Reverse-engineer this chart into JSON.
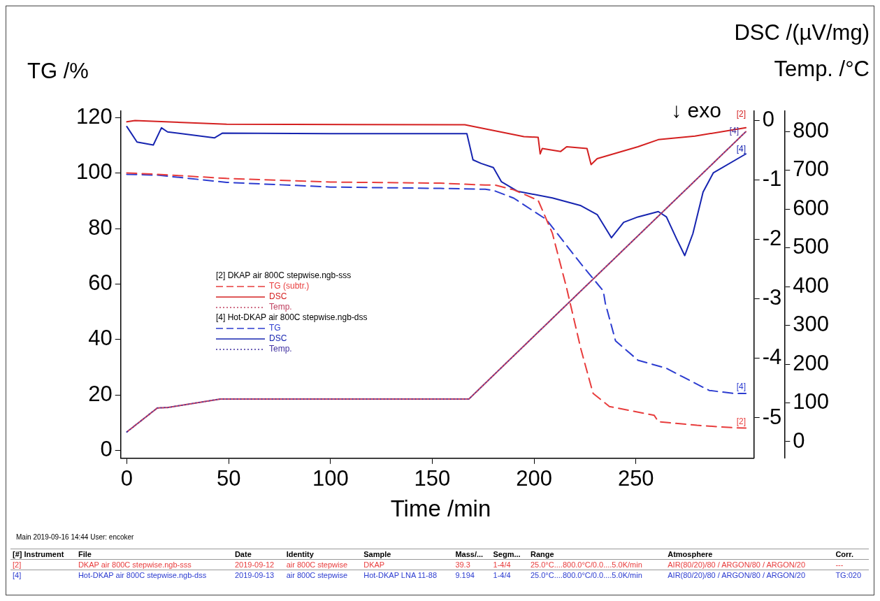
{
  "chart_data": {
    "type": "line",
    "xlabel": "Time /min",
    "ylabel": "TG /%",
    "y2label": "DSC /(µV/mg)",
    "y3label": "Temp. /°C",
    "xlim": [
      -3,
      308
    ],
    "xticks": [
      0,
      50,
      100,
      150,
      200,
      250
    ],
    "ylim": [
      -2.9,
      122.4
    ],
    "yticks": [
      0,
      20,
      40,
      60,
      80,
      100,
      120
    ],
    "y2lim": [
      -5.68,
      0.16
    ],
    "y2ticks": [
      -5,
      -4,
      -3,
      -2,
      -1,
      0
    ],
    "y3lim": [
      -43,
      853
    ],
    "y3ticks": [
      0,
      100,
      200,
      300,
      400,
      500,
      600,
      700,
      800
    ],
    "grid": false,
    "legend": "left",
    "marker": "none",
    "series": [
      {
        "name": "TG (subtr.)",
        "color": "#e83c3c",
        "line_style": "dashed",
        "x": [
          0,
          15,
          49,
          100,
          154,
          176,
          181,
          190,
          202,
          209,
          216,
          223,
          229,
          237,
          259,
          260,
          261,
          280,
          299,
          304
        ],
        "values": [
          100.1,
          99.6,
          98.1,
          96.8,
          96.4,
          95.7,
          95.7,
          94,
          90.2,
          78.3,
          58.5,
          36.5,
          20.5,
          15.8,
          12.6,
          11.5,
          10.3,
          9,
          8.1,
          8
        ]
      },
      {
        "name": "DSC",
        "color": "#d42020",
        "line_style": "solid",
        "axis": "y2",
        "x": [
          0,
          4,
          49,
          166,
          195,
          202,
          203,
          204,
          213,
          216,
          226,
          228,
          231,
          251,
          261,
          279,
          304
        ],
        "values": [
          -0.02,
          0,
          -0.06,
          -0.07,
          -0.27,
          -0.28,
          -0.56,
          -0.47,
          -0.52,
          -0.44,
          -0.47,
          -0.74,
          -0.64,
          -0.44,
          -0.32,
          -0.26,
          -0.12
        ]
      },
      {
        "name": "Temp.",
        "color": "#c04060",
        "line_style": "dotted",
        "axis": "y3",
        "x": [
          0,
          15,
          20,
          46,
          168,
          304
        ],
        "values": [
          25,
          87,
          88,
          110,
          110,
          800
        ]
      },
      {
        "name": "TG",
        "color": "#2c3cd0",
        "line_style": "dashed",
        "x": [
          0,
          15,
          49,
          100,
          154,
          176,
          180,
          190,
          206,
          223,
          234,
          235,
          240,
          251,
          265,
          273,
          286,
          298,
          304
        ],
        "values": [
          99.6,
          99.3,
          96.7,
          95,
          94.5,
          94.2,
          93.8,
          91,
          83.3,
          67.3,
          57.5,
          53,
          39.5,
          32.5,
          29.6,
          26.5,
          21.6,
          20.5,
          20.5
        ]
      },
      {
        "name": "DSC",
        "color": "#1624b0",
        "line_style": "solid",
        "axis": "y2",
        "x": [
          0,
          5,
          13,
          17,
          20,
          43,
          47,
          100,
          167,
          170,
          174,
          180,
          184,
          192,
          209,
          223,
          231,
          238,
          244,
          251,
          261,
          265,
          270,
          274,
          278,
          283,
          288,
          304
        ],
        "values": [
          -0.1,
          -0.36,
          -0.41,
          -0.12,
          -0.19,
          -0.29,
          -0.21,
          -0.22,
          -0.22,
          -0.66,
          -0.72,
          -0.79,
          -1.03,
          -1.19,
          -1.3,
          -1.43,
          -1.58,
          -1.97,
          -1.71,
          -1.62,
          -1.53,
          -1.62,
          -1.99,
          -2.27,
          -1.9,
          -1.2,
          -0.88,
          -0.56
        ]
      },
      {
        "name": "Temp.",
        "color": "#4030a0",
        "line_style": "dotted",
        "axis": "y3",
        "x": [
          0,
          15,
          20,
          46,
          168,
          304
        ],
        "values": [
          25,
          87,
          88,
          110,
          110,
          800
        ]
      }
    ],
    "annotations": [
      "↓ exo",
      "[2] DKAP air 800C stepwise.ngb-sss",
      "[4] Hot-DKAP air 800C stepwise.ngb-dss",
      "Main  2019-09-16 14:44  User: encoker",
      "[#] Instrument",
      "File",
      "Date",
      "Identity",
      "Sample",
      "Mass/...",
      "Segm...",
      "Range",
      "Atmosphere",
      "Corr.",
      "[2]",
      "DKAP air 800C stepwise.ngb-sss",
      "2019-09-12",
      "air 800C stepwise",
      "DKAP",
      "39.3",
      "1-4/4",
      "25.0°C....800.0°C/0.0....5.0K/min",
      "AIR(80/20)/80 / ARGON/80 / ARGON/20",
      "---",
      "[4]",
      "Hot-DKAP air 800C stepwise.ngb-dss",
      "2019-09-13",
      "air 800C stepwise",
      "Hot-DKAP LNA 11-88",
      "9.194",
      "1-4/4",
      "25.0°C....800.0°C/0.0....5.0K/min",
      "AIR(80/20)/80 / ARGON/80 / ARGON/20",
      "TG:020",
      "[2]",
      "[4]",
      "[4]",
      "[4]",
      "[2]"
    ]
  }
}
